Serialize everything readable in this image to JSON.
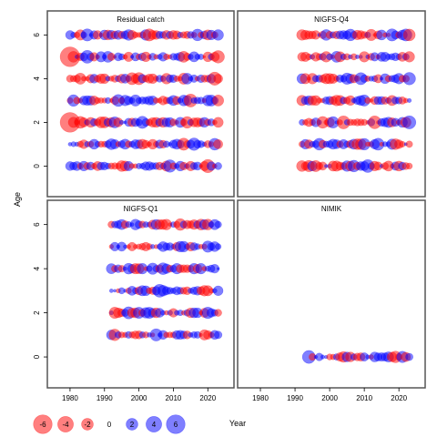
{
  "chart_data": {
    "type": "scatter",
    "xlabel": "Year",
    "ylabel": "Age",
    "xlim": [
      1975,
      2026
    ],
    "ylim": [
      -1.4,
      7.1
    ],
    "x_ticks": [
      1980,
      1990,
      2000,
      2010,
      2020
    ],
    "y_ticks": [
      0,
      2,
      4,
      6
    ],
    "x_tick_labels": [
      "1980",
      "1990",
      "2000",
      "2010",
      "2020"
    ],
    "y_tick_labels": [
      "0",
      "2",
      "4",
      "6"
    ],
    "grid": false,
    "colors": {
      "positive": "#0000ff",
      "negative": "#ff0000"
    },
    "legend": {
      "placement": "bottom-left",
      "values": [
        -6,
        -4,
        -2,
        0,
        2,
        4,
        6
      ],
      "labels": [
        "-6",
        "-4",
        "-2",
        "0",
        "2",
        "4",
        "6"
      ]
    },
    "panels": [
      {
        "title": "Residual catch",
        "years": [
          1980,
          2023
        ],
        "ages": [
          0,
          1,
          2,
          3,
          4,
          5,
          6
        ]
      },
      {
        "title": "NIGFS-Q4",
        "years": [
          1992,
          2023
        ],
        "ages": [
          0,
          1,
          2,
          3,
          4,
          5,
          6
        ]
      },
      {
        "title": "NIGFS-Q1",
        "years": [
          1992,
          2023
        ],
        "ages": [
          1,
          2,
          3,
          4,
          5,
          6
        ]
      },
      {
        "title": "NIMIK",
        "years": [
          1994,
          2023
        ],
        "ages": [
          0
        ]
      }
    ]
  }
}
